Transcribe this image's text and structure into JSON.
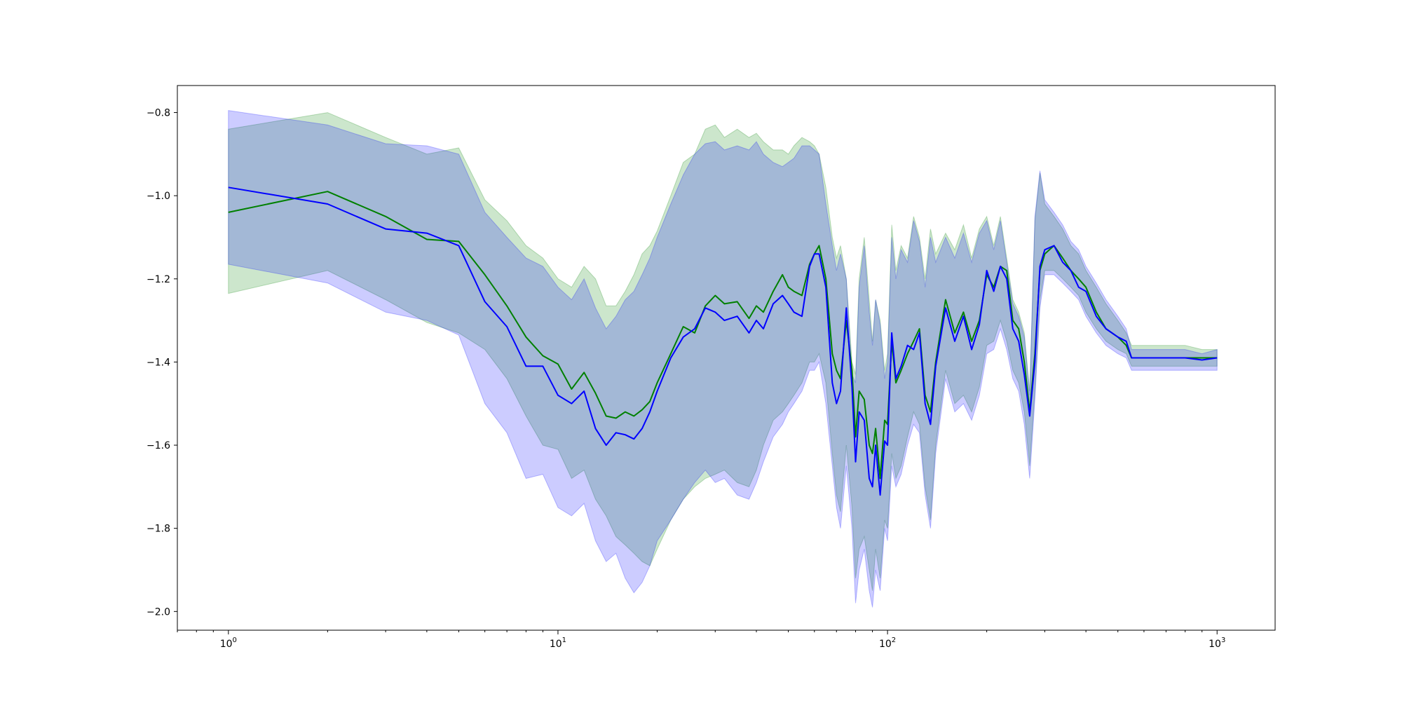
{
  "chart_data": {
    "type": "line",
    "title": "",
    "xlabel": "",
    "ylabel": "",
    "xscale": "log",
    "xlim": [
      0.7,
      1500
    ],
    "ylim": [
      -2.045,
      -0.735
    ],
    "grid": false,
    "legend": "none",
    "x_ticks": [
      {
        "value": 1,
        "base": "10",
        "exp": "0"
      },
      {
        "value": 10,
        "base": "10",
        "exp": "1"
      },
      {
        "value": 100,
        "base": "10",
        "exp": "2"
      },
      {
        "value": 1000,
        "base": "10",
        "exp": "3"
      }
    ],
    "y_ticks": [
      {
        "value": -0.8,
        "label": "−0.8"
      },
      {
        "value": -1.0,
        "label": "−1.0"
      },
      {
        "value": -1.2,
        "label": "−1.2"
      },
      {
        "value": -1.4,
        "label": "−1.4"
      },
      {
        "value": -1.6,
        "label": "−1.6"
      },
      {
        "value": -1.8,
        "label": "−1.8"
      },
      {
        "value": -2.0,
        "label": "−2.0"
      }
    ],
    "series": [
      {
        "color": "#008000",
        "band_color": "#008000",
        "band_opacity": 0.2,
        "x": [
          1,
          2,
          3,
          4,
          5,
          6,
          7,
          8,
          9,
          10,
          11,
          12,
          13,
          14,
          15,
          16,
          17,
          18,
          19,
          20,
          22,
          24,
          26,
          28,
          30,
          32,
          35,
          38,
          40,
          42,
          45,
          48,
          50,
          52,
          55,
          58,
          60,
          62,
          65,
          68,
          70,
          72,
          75,
          78,
          80,
          82,
          85,
          88,
          90,
          92,
          95,
          98,
          100,
          103,
          106,
          110,
          115,
          120,
          125,
          130,
          135,
          140,
          150,
          160,
          170,
          180,
          190,
          200,
          210,
          220,
          230,
          240,
          250,
          260,
          270,
          280,
          290,
          300,
          320,
          340,
          360,
          380,
          400,
          430,
          460,
          500,
          530,
          550,
          600,
          700,
          800,
          900,
          1000
        ],
        "mean": [
          -1.04,
          -0.99,
          -1.05,
          -1.105,
          -1.11,
          -1.19,
          -1.265,
          -1.34,
          -1.385,
          -1.405,
          -1.465,
          -1.425,
          -1.475,
          -1.53,
          -1.535,
          -1.52,
          -1.53,
          -1.515,
          -1.495,
          -1.45,
          -1.38,
          -1.315,
          -1.33,
          -1.265,
          -1.24,
          -1.26,
          -1.255,
          -1.295,
          -1.265,
          -1.28,
          -1.23,
          -1.19,
          -1.22,
          -1.23,
          -1.24,
          -1.165,
          -1.14,
          -1.12,
          -1.2,
          -1.38,
          -1.42,
          -1.44,
          -1.3,
          -1.42,
          -1.58,
          -1.47,
          -1.49,
          -1.6,
          -1.62,
          -1.56,
          -1.68,
          -1.54,
          -1.55,
          -1.35,
          -1.45,
          -1.42,
          -1.38,
          -1.35,
          -1.32,
          -1.48,
          -1.52,
          -1.4,
          -1.25,
          -1.33,
          -1.28,
          -1.35,
          -1.3,
          -1.19,
          -1.22,
          -1.17,
          -1.18,
          -1.3,
          -1.32,
          -1.4,
          -1.52,
          -1.38,
          -1.18,
          -1.14,
          -1.12,
          -1.15,
          -1.18,
          -1.2,
          -1.22,
          -1.28,
          -1.32,
          -1.34,
          -1.36,
          -1.39,
          -1.39,
          -1.39,
          -1.39,
          -1.39,
          -1.39
        ],
        "upper": [
          -0.84,
          -0.8,
          -0.86,
          -0.9,
          -0.885,
          -1.01,
          -1.06,
          -1.12,
          -1.15,
          -1.2,
          -1.22,
          -1.17,
          -1.2,
          -1.265,
          -1.265,
          -1.23,
          -1.19,
          -1.14,
          -1.12,
          -1.085,
          -1.0,
          -0.92,
          -0.9,
          -0.84,
          -0.83,
          -0.86,
          -0.84,
          -0.86,
          -0.85,
          -0.87,
          -0.89,
          -0.89,
          -0.9,
          -0.88,
          -0.86,
          -0.87,
          -0.88,
          -0.9,
          -0.98,
          -1.1,
          -1.15,
          -1.12,
          -1.2,
          -1.4,
          -1.43,
          -1.2,
          -1.1,
          -1.25,
          -1.35,
          -1.25,
          -1.3,
          -1.42,
          -1.38,
          -1.07,
          -1.18,
          -1.12,
          -1.15,
          -1.05,
          -1.1,
          -1.2,
          -1.08,
          -1.14,
          -1.09,
          -1.13,
          -1.07,
          -1.15,
          -1.08,
          -1.05,
          -1.12,
          -1.05,
          -1.15,
          -1.25,
          -1.28,
          -1.33,
          -1.47,
          -1.06,
          -0.945,
          -1.02,
          -1.05,
          -1.08,
          -1.12,
          -1.14,
          -1.18,
          -1.22,
          -1.26,
          -1.3,
          -1.33,
          -1.36,
          -1.36,
          -1.36,
          -1.36,
          -1.37,
          -1.37
        ],
        "lower": [
          -1.235,
          -1.18,
          -1.25,
          -1.305,
          -1.33,
          -1.37,
          -1.44,
          -1.53,
          -1.6,
          -1.61,
          -1.68,
          -1.66,
          -1.73,
          -1.77,
          -1.82,
          -1.84,
          -1.86,
          -1.88,
          -1.89,
          -1.85,
          -1.78,
          -1.73,
          -1.7,
          -1.68,
          -1.67,
          -1.66,
          -1.69,
          -1.7,
          -1.66,
          -1.6,
          -1.54,
          -1.52,
          -1.5,
          -1.48,
          -1.45,
          -1.4,
          -1.4,
          -1.38,
          -1.45,
          -1.62,
          -1.72,
          -1.76,
          -1.6,
          -1.75,
          -1.92,
          -1.85,
          -1.82,
          -1.9,
          -1.95,
          -1.85,
          -1.92,
          -1.78,
          -1.8,
          -1.62,
          -1.68,
          -1.65,
          -1.58,
          -1.52,
          -1.55,
          -1.7,
          -1.78,
          -1.6,
          -1.42,
          -1.5,
          -1.48,
          -1.52,
          -1.46,
          -1.36,
          -1.35,
          -1.3,
          -1.35,
          -1.42,
          -1.45,
          -1.52,
          -1.65,
          -1.47,
          -1.25,
          -1.18,
          -1.18,
          -1.2,
          -1.22,
          -1.24,
          -1.28,
          -1.32,
          -1.35,
          -1.37,
          -1.38,
          -1.41,
          -1.41,
          -1.41,
          -1.41,
          -1.41,
          -1.41
        ]
      },
      {
        "color": "#0000ff",
        "band_color": "#0000ff",
        "band_opacity": 0.2,
        "x": [
          1,
          2,
          3,
          4,
          5,
          6,
          7,
          8,
          9,
          10,
          11,
          12,
          13,
          14,
          15,
          16,
          17,
          18,
          19,
          20,
          22,
          24,
          26,
          28,
          30,
          32,
          35,
          38,
          40,
          42,
          45,
          48,
          50,
          52,
          55,
          58,
          60,
          62,
          65,
          68,
          70,
          72,
          75,
          78,
          80,
          82,
          85,
          88,
          90,
          92,
          95,
          98,
          100,
          103,
          106,
          110,
          115,
          120,
          125,
          130,
          135,
          140,
          150,
          160,
          170,
          180,
          190,
          200,
          210,
          220,
          230,
          240,
          250,
          260,
          270,
          280,
          290,
          300,
          320,
          340,
          360,
          380,
          400,
          430,
          460,
          500,
          530,
          550,
          600,
          700,
          800,
          900,
          1000
        ],
        "mean": [
          -0.98,
          -1.02,
          -1.08,
          -1.09,
          -1.12,
          -1.255,
          -1.315,
          -1.41,
          -1.41,
          -1.48,
          -1.5,
          -1.47,
          -1.56,
          -1.6,
          -1.57,
          -1.575,
          -1.585,
          -1.56,
          -1.52,
          -1.47,
          -1.39,
          -1.34,
          -1.32,
          -1.27,
          -1.28,
          -1.3,
          -1.29,
          -1.33,
          -1.3,
          -1.32,
          -1.26,
          -1.24,
          -1.26,
          -1.28,
          -1.29,
          -1.17,
          -1.14,
          -1.14,
          -1.22,
          -1.45,
          -1.5,
          -1.47,
          -1.27,
          -1.46,
          -1.64,
          -1.52,
          -1.54,
          -1.68,
          -1.7,
          -1.6,
          -1.72,
          -1.59,
          -1.6,
          -1.33,
          -1.44,
          -1.41,
          -1.36,
          -1.37,
          -1.33,
          -1.5,
          -1.55,
          -1.41,
          -1.27,
          -1.35,
          -1.29,
          -1.37,
          -1.31,
          -1.18,
          -1.23,
          -1.17,
          -1.2,
          -1.32,
          -1.35,
          -1.43,
          -1.53,
          -1.4,
          -1.17,
          -1.13,
          -1.12,
          -1.16,
          -1.18,
          -1.22,
          -1.23,
          -1.29,
          -1.32,
          -1.34,
          -1.35,
          -1.39,
          -1.39,
          -1.39,
          -1.39,
          -1.395,
          -1.39
        ],
        "upper": [
          -0.795,
          -0.83,
          -0.875,
          -0.88,
          -0.9,
          -1.04,
          -1.1,
          -1.15,
          -1.17,
          -1.22,
          -1.25,
          -1.2,
          -1.27,
          -1.32,
          -1.29,
          -1.25,
          -1.23,
          -1.19,
          -1.15,
          -1.1,
          -1.02,
          -0.95,
          -0.9,
          -0.875,
          -0.87,
          -0.89,
          -0.88,
          -0.89,
          -0.87,
          -0.9,
          -0.92,
          -0.93,
          -0.92,
          -0.91,
          -0.88,
          -0.88,
          -0.89,
          -0.9,
          -1.02,
          -1.12,
          -1.18,
          -1.14,
          -1.2,
          -1.43,
          -1.45,
          -1.22,
          -1.12,
          -1.28,
          -1.36,
          -1.25,
          -1.31,
          -1.44,
          -1.4,
          -1.1,
          -1.2,
          -1.13,
          -1.16,
          -1.06,
          -1.11,
          -1.22,
          -1.1,
          -1.16,
          -1.1,
          -1.15,
          -1.09,
          -1.16,
          -1.09,
          -1.06,
          -1.13,
          -1.06,
          -1.16,
          -1.26,
          -1.29,
          -1.34,
          -1.48,
          -1.05,
          -0.94,
          -1.01,
          -1.04,
          -1.07,
          -1.11,
          -1.13,
          -1.17,
          -1.21,
          -1.25,
          -1.29,
          -1.32,
          -1.37,
          -1.37,
          -1.37,
          -1.37,
          -1.38,
          -1.37
        ],
        "lower": [
          -1.165,
          -1.21,
          -1.28,
          -1.3,
          -1.335,
          -1.5,
          -1.57,
          -1.68,
          -1.67,
          -1.75,
          -1.77,
          -1.74,
          -1.83,
          -1.88,
          -1.86,
          -1.92,
          -1.955,
          -1.93,
          -1.89,
          -1.83,
          -1.78,
          -1.73,
          -1.69,
          -1.66,
          -1.69,
          -1.68,
          -1.72,
          -1.73,
          -1.69,
          -1.64,
          -1.58,
          -1.55,
          -1.52,
          -1.5,
          -1.47,
          -1.42,
          -1.42,
          -1.4,
          -1.5,
          -1.65,
          -1.75,
          -1.8,
          -1.65,
          -1.8,
          -1.98,
          -1.9,
          -1.85,
          -1.95,
          -1.99,
          -1.9,
          -1.95,
          -1.8,
          -1.83,
          -1.65,
          -1.7,
          -1.67,
          -1.6,
          -1.55,
          -1.57,
          -1.72,
          -1.8,
          -1.62,
          -1.44,
          -1.52,
          -1.5,
          -1.54,
          -1.48,
          -1.38,
          -1.37,
          -1.32,
          -1.37,
          -1.44,
          -1.47,
          -1.55,
          -1.68,
          -1.49,
          -1.27,
          -1.19,
          -1.19,
          -1.21,
          -1.23,
          -1.25,
          -1.29,
          -1.33,
          -1.36,
          -1.38,
          -1.39,
          -1.42,
          -1.42,
          -1.42,
          -1.42,
          -1.42,
          -1.42
        ]
      }
    ]
  }
}
